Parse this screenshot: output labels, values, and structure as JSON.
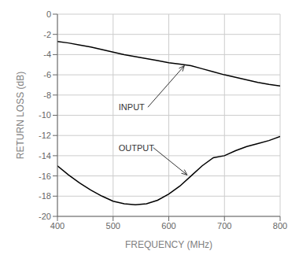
{
  "chart_data": {
    "type": "line",
    "xlabel": "FREQUENCY (MHz)",
    "ylabel": "RETURN LOSS (dB)",
    "x": [
      400,
      420,
      440,
      460,
      480,
      500,
      520,
      540,
      560,
      580,
      600,
      620,
      640,
      660,
      680,
      700,
      720,
      740,
      760,
      780,
      800
    ],
    "series": [
      {
        "color": "#000000",
        "values": [
          -2.7,
          -2.85,
          -3.05,
          -3.25,
          -3.5,
          -3.75,
          -4.0,
          -4.2,
          -4.4,
          -4.6,
          -4.8,
          -4.95,
          -5.1,
          -5.4,
          -5.7,
          -6.0,
          -6.25,
          -6.5,
          -6.75,
          -6.95,
          -7.1
        ]
      },
      {
        "color": "#000000",
        "values": [
          -15.0,
          -15.9,
          -16.7,
          -17.4,
          -18.0,
          -18.5,
          -18.75,
          -18.85,
          -18.75,
          -18.4,
          -17.8,
          -17.0,
          -16.0,
          -15.0,
          -14.2,
          -14.0,
          -13.5,
          -13.1,
          -12.8,
          -12.5,
          -12.1
        ]
      }
    ],
    "xlim": [
      400,
      800
    ],
    "ylim": [
      -20,
      0
    ],
    "xticks": [
      400,
      500,
      600,
      700,
      800
    ],
    "yticks": [
      0,
      -2,
      -4,
      -6,
      -8,
      -10,
      -12,
      -14,
      -16,
      -18,
      -20
    ],
    "grid": true,
    "annotations": [
      {
        "text": "INPUT",
        "x": 628,
        "y": -5.1,
        "text_x": 510,
        "text_y": -9.2
      },
      {
        "text": "OUTPUT",
        "x": 633,
        "y": -15.9,
        "text_x": 510,
        "text_y": -13.2
      }
    ]
  }
}
